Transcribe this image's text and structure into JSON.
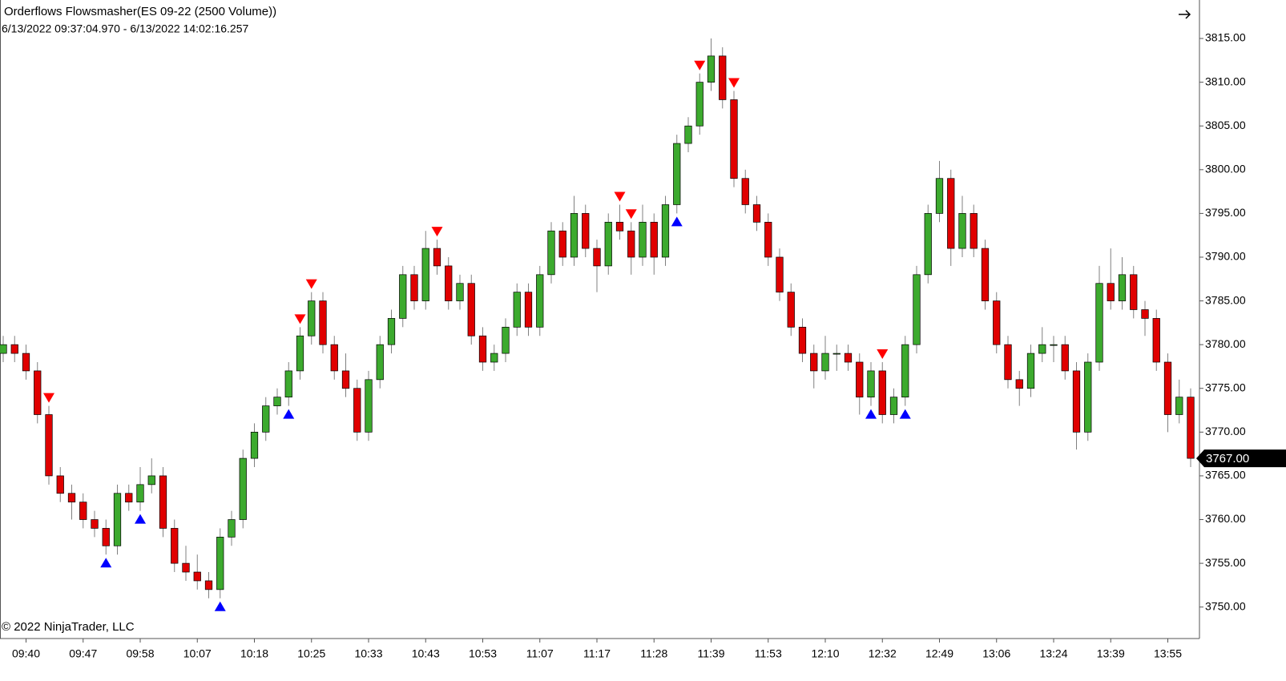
{
  "chart_data": {
    "type": "candlestick",
    "title": "Orderflows Flowsmasher(ES 09-22 (2500 Volume))",
    "subtitle": "6/13/2022 09:37:04.970 - 6/13/2022 14:02:16.257",
    "footer": "© 2022 NinjaTrader, LLC",
    "categories": [
      null,
      null,
      "09:40",
      null,
      null,
      null,
      null,
      "09:47",
      null,
      null,
      null,
      null,
      "09:58",
      null,
      null,
      null,
      null,
      "10:07",
      null,
      null,
      null,
      null,
      "10:18",
      null,
      null,
      null,
      null,
      "10:25",
      null,
      null,
      null,
      null,
      "10:33",
      null,
      null,
      null,
      null,
      "10:43",
      null,
      null,
      null,
      null,
      "10:53",
      null,
      null,
      null,
      null,
      "11:07",
      null,
      null,
      null,
      null,
      "11:17",
      null,
      null,
      null,
      null,
      "11:28",
      null,
      null,
      null,
      null,
      "11:39",
      null,
      null,
      null,
      null,
      "11:53",
      null,
      null,
      null,
      null,
      "12:10",
      null,
      null,
      null,
      null,
      "12:32",
      null,
      null,
      null,
      null,
      "12:49",
      null,
      null,
      null,
      null,
      "13:06",
      null,
      null,
      null,
      null,
      "13:24",
      null,
      null,
      null,
      null,
      "13:39",
      null,
      null,
      null,
      null,
      "13:55",
      null,
      null
    ],
    "candles": [
      [
        3779,
        3781,
        3778,
        3780
      ],
      [
        3780,
        3781,
        3778,
        3779
      ],
      [
        3779,
        3780,
        3776,
        3777
      ],
      [
        3777,
        3778,
        3771,
        3772
      ],
      [
        3772,
        3773,
        3764,
        3765
      ],
      [
        3765,
        3766,
        3762,
        3763
      ],
      [
        3763,
        3764,
        3760,
        3762
      ],
      [
        3762,
        3763,
        3759,
        3760
      ],
      [
        3760,
        3761,
        3758,
        3759
      ],
      [
        3759,
        3760,
        3756,
        3757
      ],
      [
        3757,
        3764,
        3756,
        3763
      ],
      [
        3763,
        3764,
        3761,
        3762
      ],
      [
        3762,
        3766,
        3761,
        3764
      ],
      [
        3764,
        3767,
        3763,
        3765
      ],
      [
        3765,
        3766,
        3758,
        3759
      ],
      [
        3759,
        3760,
        3754,
        3755
      ],
      [
        3755,
        3757,
        3753,
        3754
      ],
      [
        3754,
        3756,
        3752,
        3753
      ],
      [
        3753,
        3754,
        3751,
        3752
      ],
      [
        3752,
        3759,
        3751,
        3758
      ],
      [
        3758,
        3761,
        3757,
        3760
      ],
      [
        3760,
        3768,
        3759,
        3767
      ],
      [
        3767,
        3771,
        3766,
        3770
      ],
      [
        3770,
        3774,
        3769,
        3773
      ],
      [
        3773,
        3775,
        3772,
        3774
      ],
      [
        3774,
        3778,
        3773,
        3777
      ],
      [
        3777,
        3782,
        3776,
        3781
      ],
      [
        3781,
        3786,
        3780,
        3785
      ],
      [
        3785,
        3786,
        3779,
        3780
      ],
      [
        3780,
        3781,
        3776,
        3777
      ],
      [
        3777,
        3779,
        3774,
        3775
      ],
      [
        3775,
        3776,
        3769,
        3770
      ],
      [
        3770,
        3777,
        3769,
        3776
      ],
      [
        3776,
        3781,
        3775,
        3780
      ],
      [
        3780,
        3784,
        3779,
        3783
      ],
      [
        3783,
        3789,
        3782,
        3788
      ],
      [
        3788,
        3789,
        3784,
        3785
      ],
      [
        3785,
        3793,
        3784,
        3791
      ],
      [
        3791,
        3792,
        3788,
        3789
      ],
      [
        3789,
        3790,
        3784,
        3785
      ],
      [
        3785,
        3788,
        3784,
        3787
      ],
      [
        3787,
        3788,
        3780,
        3781
      ],
      [
        3781,
        3782,
        3777,
        3778
      ],
      [
        3778,
        3780,
        3777,
        3779
      ],
      [
        3779,
        3783,
        3778,
        3782
      ],
      [
        3782,
        3787,
        3781,
        3786
      ],
      [
        3786,
        3787,
        3781,
        3782
      ],
      [
        3782,
        3789,
        3781,
        3788
      ],
      [
        3788,
        3794,
        3787,
        3793
      ],
      [
        3793,
        3794,
        3789,
        3790
      ],
      [
        3790,
        3797,
        3789,
        3795
      ],
      [
        3795,
        3796,
        3790,
        3791
      ],
      [
        3791,
        3792,
        3786,
        3789
      ],
      [
        3789,
        3795,
        3788,
        3794
      ],
      [
        3794,
        3796,
        3792,
        3793
      ],
      [
        3793,
        3794,
        3788,
        3790
      ],
      [
        3790,
        3796,
        3789,
        3794
      ],
      [
        3794,
        3795,
        3788,
        3790
      ],
      [
        3790,
        3797,
        3789,
        3796
      ],
      [
        3796,
        3804,
        3795,
        3803
      ],
      [
        3803,
        3806,
        3802,
        3805
      ],
      [
        3805,
        3811,
        3804,
        3810
      ],
      [
        3810,
        3815,
        3809,
        3813
      ],
      [
        3813,
        3814,
        3807,
        3808
      ],
      [
        3808,
        3809,
        3798,
        3799
      ],
      [
        3799,
        3800,
        3795,
        3796
      ],
      [
        3796,
        3797,
        3793,
        3794
      ],
      [
        3794,
        3795,
        3789,
        3790
      ],
      [
        3790,
        3791,
        3785,
        3786
      ],
      [
        3786,
        3787,
        3781,
        3782
      ],
      [
        3782,
        3783,
        3778,
        3779
      ],
      [
        3779,
        3780,
        3775,
        3777
      ],
      [
        3777,
        3781,
        3776,
        3779
      ],
      [
        3779,
        3780,
        3777,
        3779
      ],
      [
        3779,
        3780,
        3777,
        3778
      ],
      [
        3778,
        3779,
        3772,
        3774
      ],
      [
        3774,
        3778,
        3773,
        3777
      ],
      [
        3777,
        3778,
        3771,
        3772
      ],
      [
        3772,
        3775,
        3771,
        3774
      ],
      [
        3774,
        3781,
        3773,
        3780
      ],
      [
        3780,
        3789,
        3779,
        3788
      ],
      [
        3788,
        3796,
        3787,
        3795
      ],
      [
        3795,
        3801,
        3794,
        3799
      ],
      [
        3799,
        3800,
        3789,
        3791
      ],
      [
        3791,
        3797,
        3790,
        3795
      ],
      [
        3795,
        3796,
        3790,
        3791
      ],
      [
        3791,
        3792,
        3784,
        3785
      ],
      [
        3785,
        3786,
        3779,
        3780
      ],
      [
        3780,
        3781,
        3775,
        3776
      ],
      [
        3776,
        3777,
        3773,
        3775
      ],
      [
        3775,
        3780,
        3774,
        3779
      ],
      [
        3779,
        3782,
        3778,
        3780
      ],
      [
        3780,
        3781,
        3778,
        3780
      ],
      [
        3780,
        3781,
        3776,
        3777
      ],
      [
        3777,
        3778,
        3768,
        3770
      ],
      [
        3770,
        3779,
        3769,
        3778
      ],
      [
        3778,
        3789,
        3777,
        3787
      ],
      [
        3787,
        3791,
        3784,
        3785
      ],
      [
        3785,
        3790,
        3784,
        3788
      ],
      [
        3788,
        3789,
        3783,
        3784
      ],
      [
        3784,
        3785,
        3781,
        3783
      ],
      [
        3783,
        3784,
        3777,
        3778
      ],
      [
        3778,
        3779,
        3770,
        3772
      ],
      [
        3772,
        3776,
        3771,
        3774
      ],
      [
        3774,
        3775,
        3766,
        3767
      ]
    ],
    "up_color": "#3caa2e",
    "down_color": "#e00000",
    "wick_color": "#808080",
    "sell_signals": [
      4,
      26,
      27,
      38,
      54,
      55,
      61,
      64,
      77
    ],
    "buy_signals": [
      9,
      12,
      19,
      25,
      59,
      76,
      79
    ],
    "sell_color": "#ff0000",
    "buy_color": "#0000ff",
    "ylim": [
      3746.4,
      3819.4
    ],
    "yticks": [
      {
        "value": 3750,
        "label": "3750.00"
      },
      {
        "value": 3755,
        "label": "3755.00"
      },
      {
        "value": 3760,
        "label": "3760.00"
      },
      {
        "value": 3765,
        "label": "3765.00"
      },
      {
        "value": 3770,
        "label": "3770.00"
      },
      {
        "value": 3775,
        "label": "3775.00"
      },
      {
        "value": 3780,
        "label": "3780.00"
      },
      {
        "value": 3785,
        "label": "3785.00"
      },
      {
        "value": 3790,
        "label": "3790.00"
      },
      {
        "value": 3795,
        "label": "3795.00"
      },
      {
        "value": 3800,
        "label": "3800.00"
      },
      {
        "value": 3805,
        "label": "3805.00"
      },
      {
        "value": 3810,
        "label": "3810.00"
      },
      {
        "value": 3815,
        "label": "3815.00"
      }
    ],
    "last_price": {
      "value": 3767,
      "label": "3767.00"
    }
  }
}
